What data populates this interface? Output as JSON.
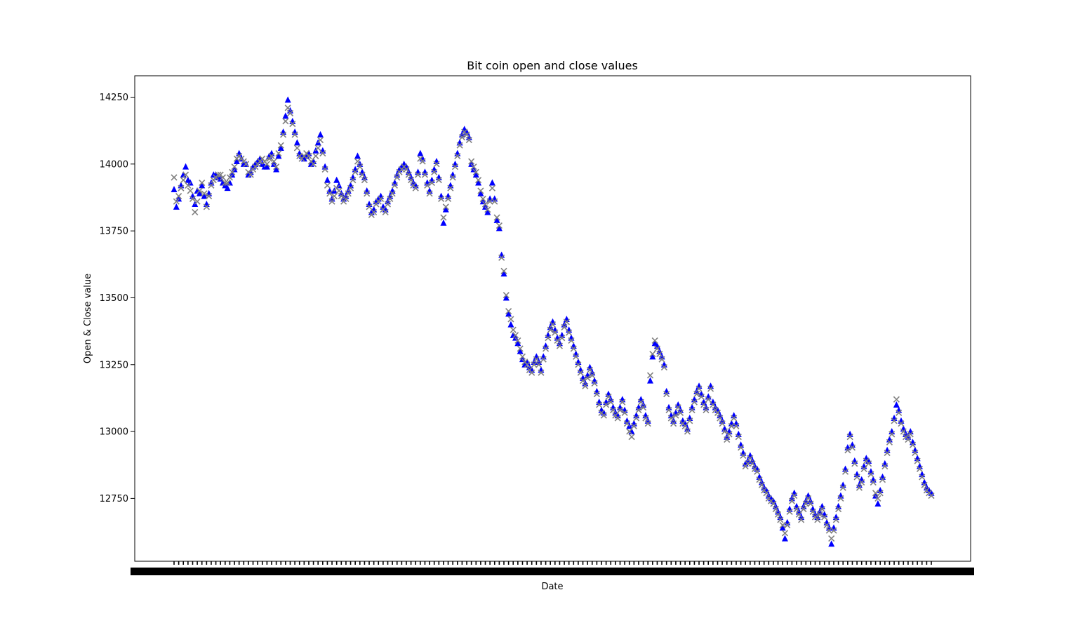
{
  "chart_data": {
    "type": "scatter",
    "title": "Bit coin open and close values",
    "xlabel": "Date",
    "ylabel": "Open & Close value",
    "ylim": [
      12515,
      14330
    ],
    "yticks": [
      12750,
      13000,
      13250,
      13500,
      13750,
      14000,
      14250
    ],
    "grid": false,
    "series": [
      {
        "marker": "triangle",
        "color": "#0000ff",
        "values": [
          13905,
          13840,
          13870,
          13920,
          13960,
          13990,
          13940,
          13930,
          13880,
          13850,
          13900,
          13890,
          13920,
          13880,
          13850,
          13890,
          13930,
          13960,
          13960,
          13950,
          13945,
          13930,
          13920,
          13910,
          13930,
          13960,
          13980,
          14010,
          14040,
          14020,
          14000,
          14000,
          13960,
          13970,
          13990,
          14000,
          14010,
          14020,
          14000,
          13990,
          13990,
          14030,
          14040,
          14000,
          13980,
          14030,
          14060,
          14120,
          14180,
          14240,
          14200,
          14160,
          14120,
          14080,
          14040,
          14030,
          14020,
          14030,
          14040,
          14000,
          14010,
          14050,
          14080,
          14110,
          14050,
          13990,
          13940,
          13900,
          13870,
          13900,
          13940,
          13920,
          13890,
          13870,
          13880,
          13900,
          13920,
          13950,
          13980,
          14030,
          14000,
          13970,
          13950,
          13900,
          13850,
          13820,
          13830,
          13860,
          13870,
          13880,
          13840,
          13830,
          13860,
          13880,
          13900,
          13930,
          13960,
          13980,
          13990,
          14000,
          13990,
          13970,
          13950,
          13930,
          13920,
          13970,
          14040,
          14020,
          13970,
          13930,
          13900,
          13940,
          13980,
          14010,
          13950,
          13880,
          13780,
          13830,
          13880,
          13920,
          13960,
          14000,
          14040,
          14080,
          14110,
          14130,
          14120,
          14100,
          14000,
          13980,
          13960,
          13930,
          13890,
          13860,
          13840,
          13820,
          13870,
          13930,
          13870,
          13790,
          13760,
          13660,
          13590,
          13500,
          13440,
          13400,
          13360,
          13350,
          13330,
          13300,
          13270,
          13250,
          13260,
          13240,
          13230,
          13260,
          13280,
          13260,
          13230,
          13280,
          13320,
          13360,
          13390,
          13410,
          13380,
          13350,
          13330,
          13360,
          13400,
          13420,
          13380,
          13350,
          13320,
          13290,
          13260,
          13230,
          13200,
          13180,
          13210,
          13240,
          13220,
          13190,
          13150,
          13110,
          13080,
          13070,
          13110,
          13140,
          13120,
          13090,
          13070,
          13060,
          13090,
          13120,
          13080,
          13040,
          13020,
          13000,
          13030,
          13060,
          13090,
          13120,
          13100,
          13060,
          13040,
          13190,
          13280,
          13330,
          13320,
          13300,
          13280,
          13250,
          13150,
          13090,
          13060,
          13040,
          13070,
          13100,
          13080,
          13040,
          13030,
          13010,
          13050,
          13090,
          13120,
          13150,
          13170,
          13140,
          13110,
          13090,
          13130,
          13170,
          13110,
          13090,
          13080,
          13060,
          13040,
          13010,
          12980,
          13000,
          13030,
          13060,
          13030,
          12990,
          12950,
          12920,
          12880,
          12890,
          12910,
          12890,
          12870,
          12860,
          12830,
          12810,
          12790,
          12780,
          12760,
          12750,
          12740,
          12720,
          12700,
          12680,
          12640,
          12600,
          12660,
          12710,
          12750,
          12770,
          12720,
          12700,
          12680,
          12720,
          12740,
          12760,
          12740,
          12710,
          12690,
          12680,
          12700,
          12720,
          12690,
          12660,
          12640,
          12580,
          12640,
          12680,
          12720,
          12760,
          12800,
          12860,
          12940,
          12990,
          12950,
          12890,
          12840,
          12800,
          12820,
          12870,
          12900,
          12890,
          12850,
          12820,
          12760,
          12730,
          12780,
          12830,
          12880,
          12930,
          12970,
          13000,
          13050,
          13100,
          13080,
          13040,
          13010,
          12990,
          12980,
          13000,
          12960,
          12930,
          12900,
          12870,
          12840,
          12810,
          12790,
          12780,
          12770
        ]
      },
      {
        "marker": "x",
        "color": "#808080",
        "values": [
          13950,
          13860,
          13880,
          13910,
          13940,
          13960,
          13920,
          13900,
          13870,
          13820,
          13860,
          13900,
          13930,
          13890,
          13840,
          13880,
          13920,
          13940,
          13950,
          13960,
          13960,
          13950,
          13930,
          13930,
          13950,
          13970,
          13990,
          14020,
          14030,
          14020,
          14010,
          14000,
          13970,
          13960,
          13980,
          13990,
          14000,
          14010,
          14020,
          14010,
          14000,
          14020,
          14030,
          14010,
          13990,
          14040,
          14070,
          14110,
          14160,
          14210,
          14190,
          14150,
          14110,
          14060,
          14030,
          14020,
          14030,
          14040,
          14030,
          14010,
          14000,
          14030,
          14060,
          14090,
          14040,
          13980,
          13920,
          13890,
          13860,
          13880,
          13910,
          13900,
          13880,
          13860,
          13870,
          13890,
          13910,
          13940,
          13970,
          14010,
          13990,
          13960,
          13940,
          13890,
          13840,
          13810,
          13820,
          13850,
          13860,
          13870,
          13830,
          13820,
          13850,
          13870,
          13890,
          13920,
          13950,
          13970,
          13980,
          13990,
          13980,
          13960,
          13940,
          13920,
          13910,
          13960,
          14020,
          14010,
          13960,
          13920,
          13890,
          13930,
          13970,
          14000,
          13940,
          13870,
          13800,
          13840,
          13870,
          13910,
          13950,
          13990,
          14030,
          14070,
          14100,
          14120,
          14110,
          14090,
          14010,
          13990,
          13970,
          13940,
          13900,
          13870,
          13850,
          13830,
          13860,
          13910,
          13860,
          13800,
          13770,
          13650,
          13600,
          13510,
          13450,
          13420,
          13380,
          13360,
          13340,
          13310,
          13280,
          13260,
          13250,
          13230,
          13220,
          13250,
          13270,
          13250,
          13220,
          13270,
          13310,
          13350,
          13380,
          13400,
          13370,
          13340,
          13320,
          13350,
          13390,
          13410,
          13370,
          13340,
          13310,
          13280,
          13250,
          13220,
          13190,
          13170,
          13200,
          13230,
          13210,
          13180,
          13140,
          13100,
          13070,
          13060,
          13100,
          13130,
          13110,
          13080,
          13060,
          13050,
          13080,
          13110,
          13070,
          13030,
          13000,
          12980,
          13020,
          13050,
          13080,
          13110,
          13090,
          13050,
          13030,
          13210,
          13290,
          13340,
          13310,
          13290,
          13270,
          13240,
          13140,
          13080,
          13050,
          13030,
          13060,
          13090,
          13070,
          13030,
          13020,
          13000,
          13040,
          13080,
          13110,
          13140,
          13160,
          13130,
          13100,
          13080,
          13120,
          13160,
          13100,
          13080,
          13070,
          13050,
          13030,
          13000,
          12970,
          12990,
          13020,
          13050,
          13020,
          12980,
          12940,
          12910,
          12870,
          12880,
          12900,
          12880,
          12860,
          12850,
          12820,
          12800,
          12780,
          12770,
          12750,
          12740,
          12730,
          12710,
          12690,
          12670,
          12650,
          12620,
          12650,
          12700,
          12740,
          12760,
          12710,
          12690,
          12670,
          12710,
          12730,
          12750,
          12730,
          12700,
          12680,
          12670,
          12690,
          12710,
          12680,
          12650,
          12630,
          12600,
          12630,
          12670,
          12710,
          12750,
          12790,
          12850,
          12930,
          12980,
          12940,
          12880,
          12830,
          12790,
          12810,
          12860,
          12890,
          12880,
          12840,
          12810,
          12770,
          12750,
          12770,
          12820,
          12870,
          12920,
          12960,
          12990,
          13040,
          13120,
          13070,
          13030,
          13000,
          12980,
          12970,
          12990,
          12950,
          12920,
          12890,
          12860,
          12830,
          12800,
          12780,
          12770,
          12760
        ]
      }
    ]
  }
}
